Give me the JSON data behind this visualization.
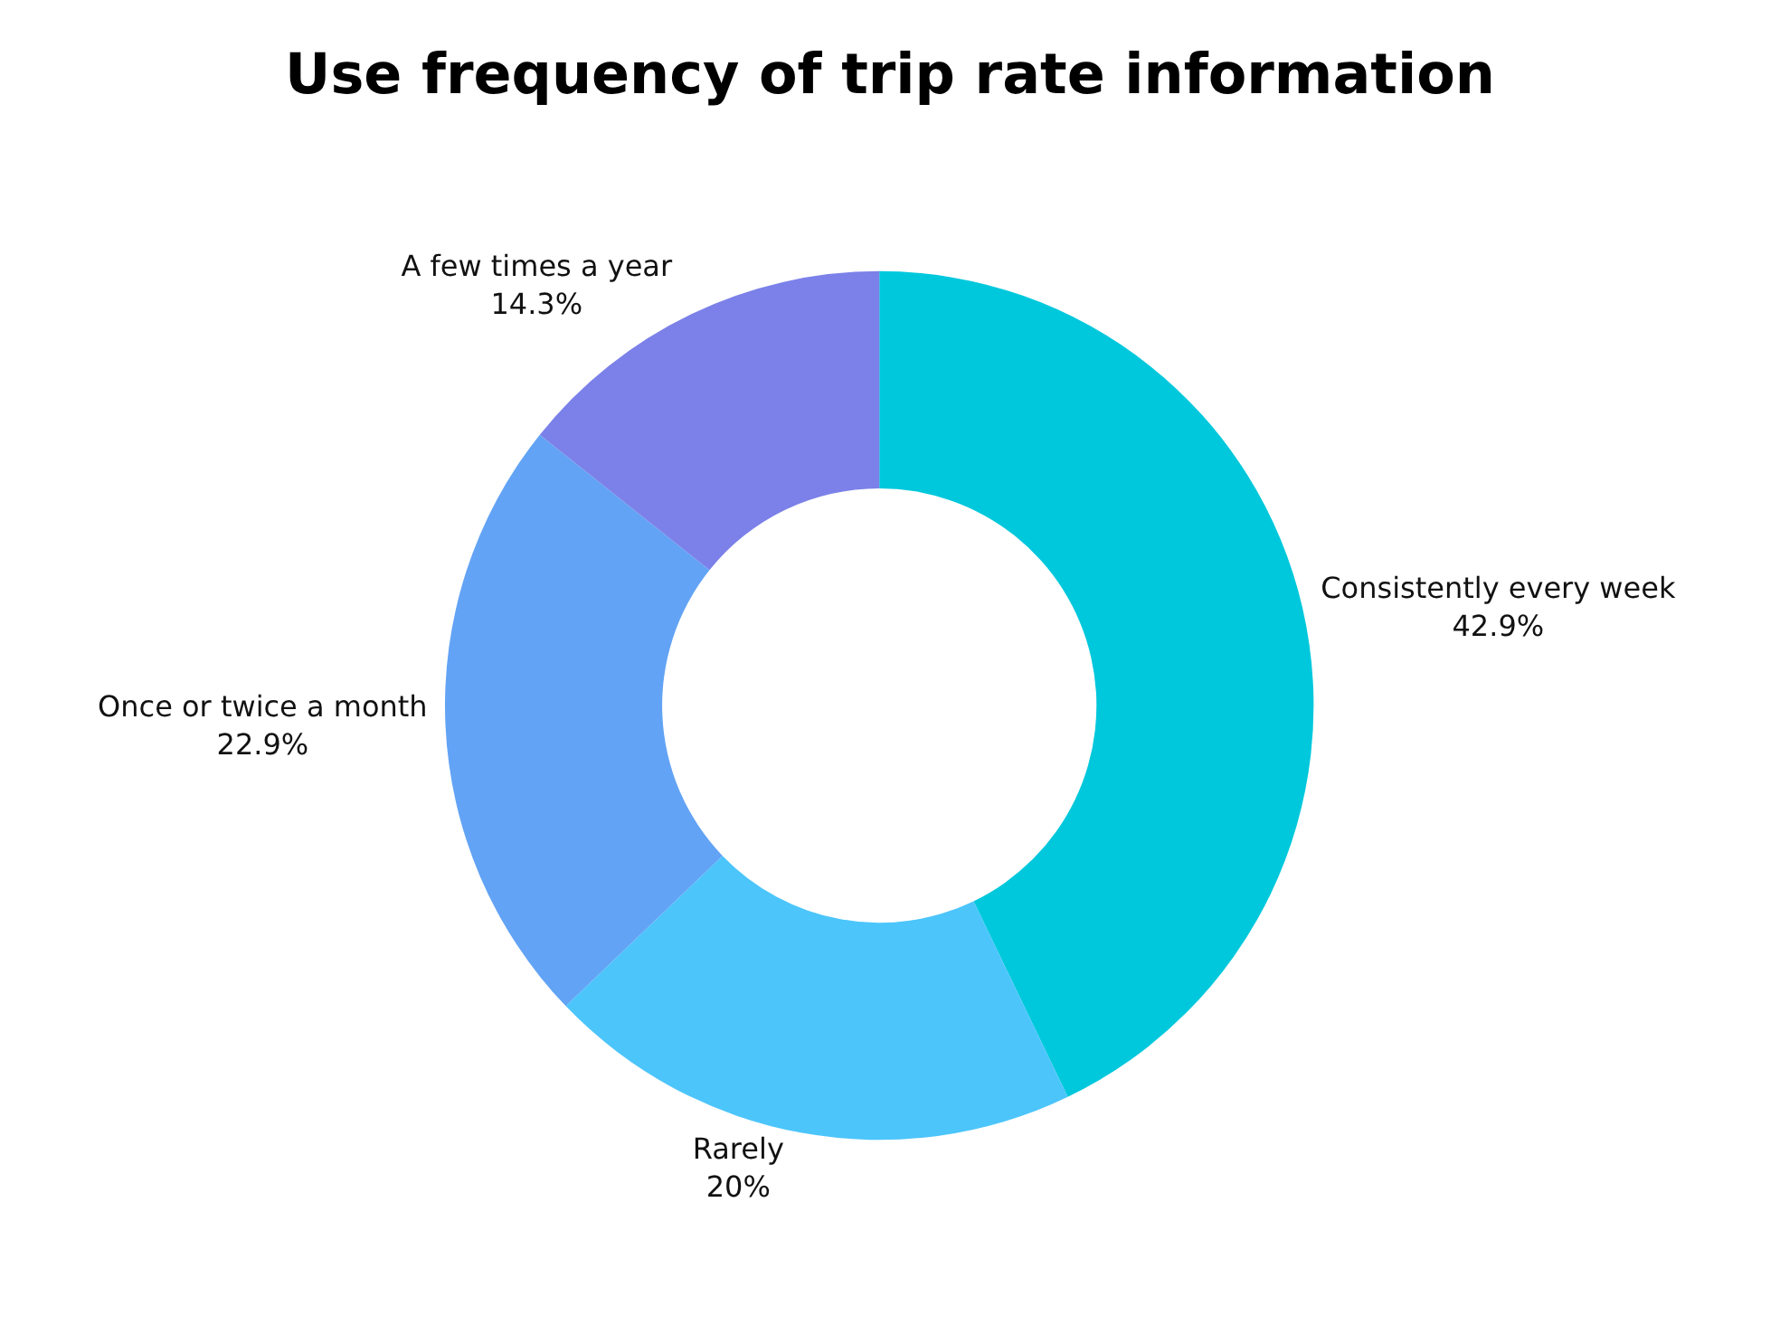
{
  "chart_data": {
    "type": "donut",
    "title": "Use frequency of trip rate information",
    "categories": [
      "Consistently every week",
      "Rarely",
      "Once or twice a month",
      "A few times a year"
    ],
    "values": [
      42.9,
      20,
      22.9,
      14.3
    ],
    "colors": [
      "#00c8dc",
      "#4cc5fb",
      "#62a3f5",
      "#7b81e8"
    ],
    "value_labels": [
      "42.9%",
      "20%",
      "22.9%",
      "14.3%"
    ],
    "legend": false
  }
}
